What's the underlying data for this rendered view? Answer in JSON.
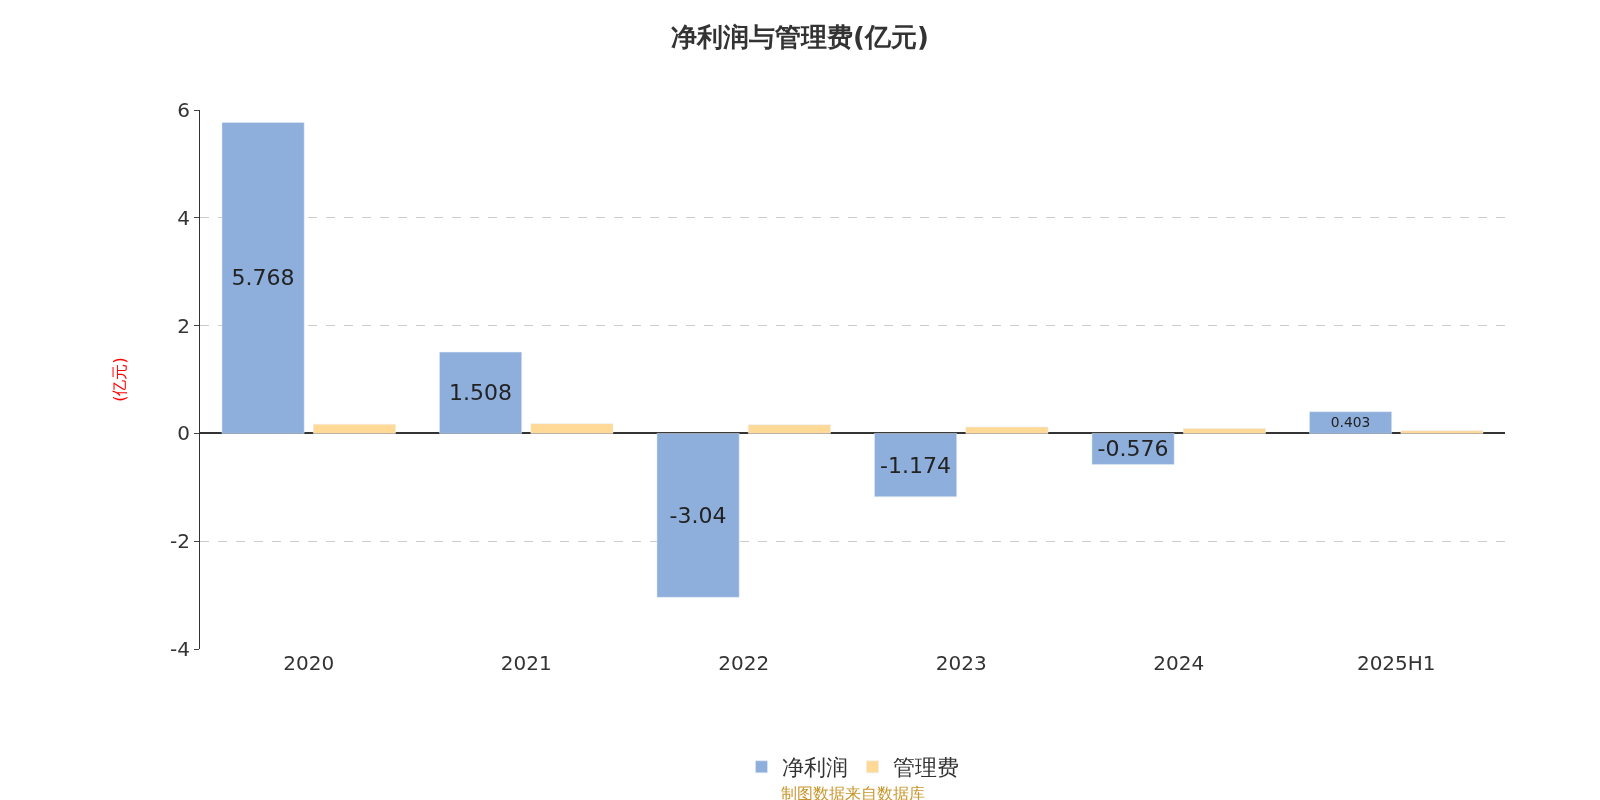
{
  "chart_data": {
    "type": "bar",
    "title": "净利润与管理费(亿元)",
    "ylabel": "(亿元)",
    "categories": [
      "2020",
      "2021",
      "2022",
      "2023",
      "2024",
      "2025H1"
    ],
    "series": [
      {
        "name": "净利润",
        "color": "#8eaedb",
        "values": [
          5.768,
          1.508,
          -3.04,
          -1.174,
          -0.576,
          0.403
        ],
        "value_labels": [
          "5.768",
          "1.508",
          "-3.04",
          "-1.174",
          "-0.576",
          "0.403"
        ]
      },
      {
        "name": "管理费",
        "color": "#ffd996",
        "values": [
          0.17,
          0.18,
          0.16,
          0.12,
          0.09,
          0.05
        ]
      }
    ],
    "ylim": [
      -4,
      6
    ],
    "yticks": [
      -4,
      -2,
      0,
      2,
      4,
      6
    ],
    "grid": "y",
    "legend": "bottom",
    "annotations": [
      "制图数据来自数据库"
    ]
  }
}
